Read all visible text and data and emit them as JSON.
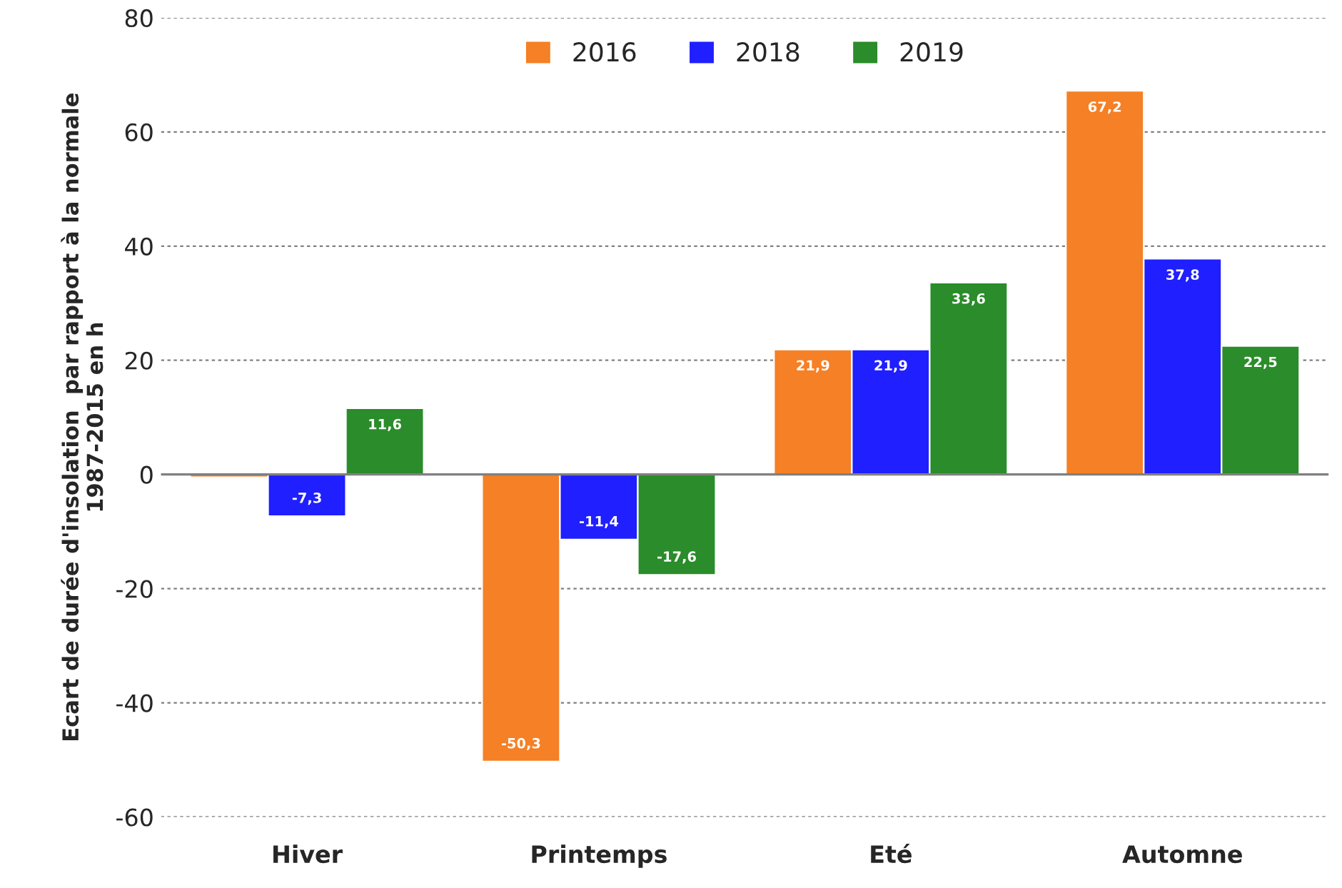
{
  "chart_data": {
    "type": "bar",
    "ylabel": "Ecart de durée d'insolation  par rapport à la normale\n1987-2015 en h",
    "categories": [
      "Hiver",
      "Printemps",
      "Eté",
      "Automne"
    ],
    "series": [
      {
        "name": "2016",
        "color": "#f58025",
        "values": [
          -0.5,
          -50.3,
          21.9,
          67.2
        ],
        "value_labels": [
          null,
          "-50,3",
          "21,9",
          "67,2"
        ]
      },
      {
        "name": "2018",
        "color": "#1f1fff",
        "values": [
          -7.3,
          -11.4,
          21.9,
          37.8
        ],
        "value_labels": [
          "-7,3",
          "-11,4",
          "21,9",
          "37,8"
        ]
      },
      {
        "name": "2019",
        "color": "#2a8c2a",
        "values": [
          11.6,
          -17.6,
          33.6,
          22.5
        ],
        "value_labels": [
          "11,6",
          "-17,6",
          "33,6",
          "22,5"
        ]
      }
    ],
    "ylim": [
      -60,
      80
    ],
    "yticks": [
      -60,
      -40,
      -20,
      0,
      20,
      40,
      60,
      80
    ],
    "grid": "y",
    "legend": "top"
  }
}
